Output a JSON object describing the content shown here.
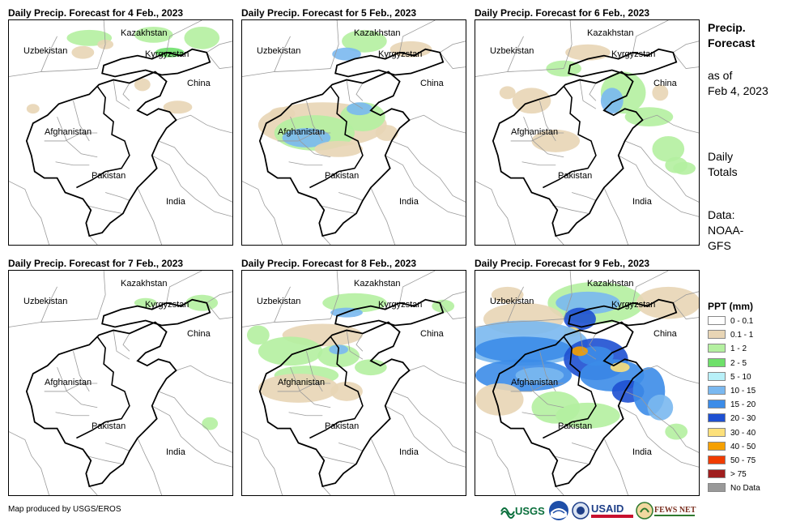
{
  "panels": [
    {
      "title": "Daily Precip. Forecast for 4 Feb., 2023"
    },
    {
      "title": "Daily Precip. Forecast for 5 Feb., 2023"
    },
    {
      "title": "Daily Precip. Forecast for 6 Feb., 2023"
    },
    {
      "title": "Daily Precip. Forecast for 7 Feb., 2023"
    },
    {
      "title": "Daily Precip. Forecast for 8 Feb., 2023"
    },
    {
      "title": "Daily Precip. Forecast for 9 Feb., 2023"
    }
  ],
  "map_labels": {
    "kazakhstan": "Kazakhstan",
    "uzbekistan": "Uzbekistan",
    "kyrgyzstan": "Kyrgyzstan",
    "china": "China",
    "afghanistan": "Afghanistan",
    "pakistan": "Pakistan",
    "india": "India"
  },
  "sidebar": {
    "title_line1": "Precip.",
    "title_line2": "Forecast",
    "asof_line1": "as of",
    "asof_line2": "Feb 4, 2023",
    "daily_line1": "Daily",
    "daily_line2": "Totals",
    "data_line1": "Data:",
    "data_line2": "NOAA-",
    "data_line3": "GFS"
  },
  "legend": {
    "title": "PPT (mm)",
    "items": [
      {
        "label": "0 - 0.1",
        "color": "#ffffff"
      },
      {
        "label": "0.1 - 1",
        "color": "#e8d5b5"
      },
      {
        "label": "1 - 2",
        "color": "#b4f0a0"
      },
      {
        "label": "2 - 5",
        "color": "#6ee06a"
      },
      {
        "label": "5 - 10",
        "color": "#b8f0f8"
      },
      {
        "label": "10 - 15",
        "color": "#7ab8f0"
      },
      {
        "label": "15 - 20",
        "color": "#3c8ce8"
      },
      {
        "label": "20 - 30",
        "color": "#1e50d2"
      },
      {
        "label": "30 - 40",
        "color": "#fce07a"
      },
      {
        "label": "40 - 50",
        "color": "#f5a000"
      },
      {
        "label": "50 - 75",
        "color": "#f03c00"
      },
      {
        "label": "> 75",
        "color": "#a01e1e"
      },
      {
        "label": "No Data",
        "color": "#999999"
      }
    ]
  },
  "footer": {
    "credit": "Map produced by USGS/EROS"
  },
  "logos": {
    "usgs": "USGS",
    "usaid": "USAID",
    "fews": "FEWS NET"
  }
}
